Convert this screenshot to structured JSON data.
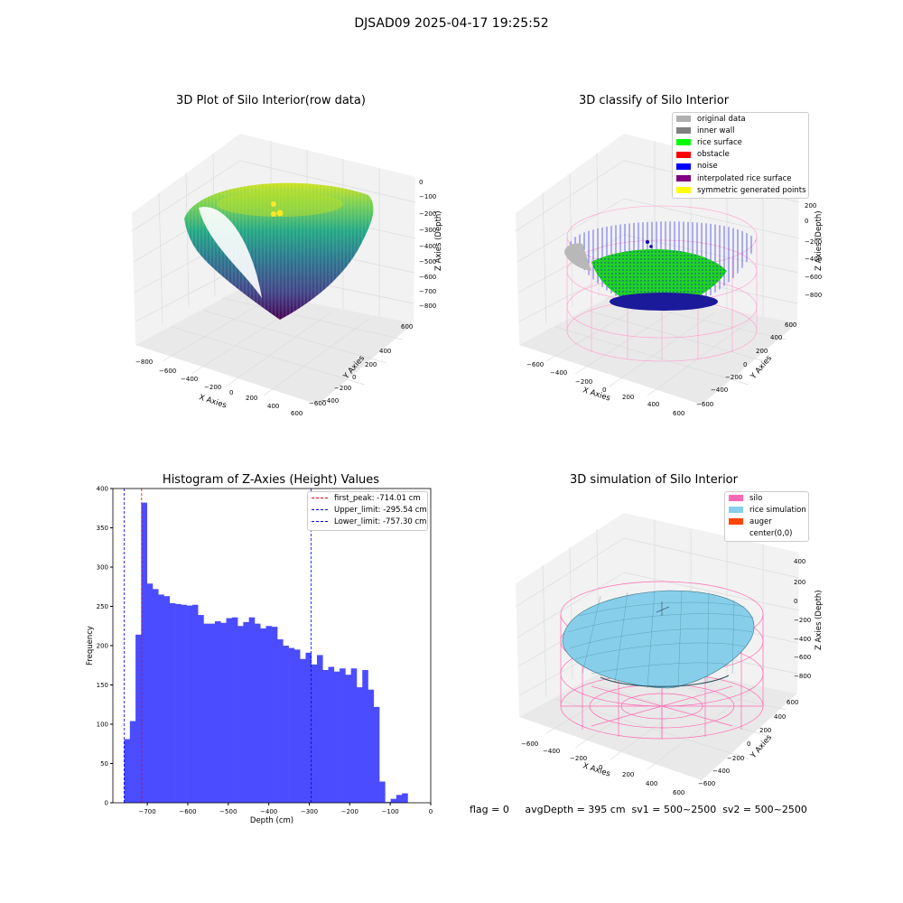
{
  "suptitle": "DJSAD09 2025-04-17 19:25:52",
  "footer": "flag = 0     avgDepth = 395 cm  sv1 = 500~2500  sv2 = 500~2500",
  "chart_data": [
    {
      "type": "scatter",
      "title": "3D Plot of Silo Interior(row data)",
      "xlabel": "X Axies",
      "ylabel": "Y Axies",
      "zlabel": "Z Axies (Depth)",
      "xticks": [
        "−800",
        "−600",
        "−400",
        "−200",
        "0",
        "200",
        "400",
        "600"
      ],
      "yticks": [
        "600",
        "400",
        "200",
        "0",
        "−200",
        "−400",
        "−600"
      ],
      "zticks": [
        "0",
        "−100",
        "−200",
        "−300",
        "−400",
        "−500",
        "−600",
        "−700",
        "−800"
      ],
      "colormap": "viridis",
      "grid": true
    },
    {
      "type": "scatter",
      "title": "3D classify of Silo Interior",
      "xlabel": "X Axies",
      "ylabel": "Y Axies",
      "zlabel": "Z Axies (Depth)",
      "xticks": [
        "−600",
        "−400",
        "−200",
        "0",
        "200",
        "400",
        "600"
      ],
      "yticks": [
        "600",
        "400",
        "200",
        "0",
        "−200",
        "−400",
        "−600"
      ],
      "zticks": [
        "200",
        "0",
        "−200",
        "−400",
        "−600",
        "−800"
      ],
      "legend_position": "top-right",
      "legend": [
        {
          "label": "original data",
          "color": "#b0b0b0"
        },
        {
          "label": "inner wall",
          "color": "#808080"
        },
        {
          "label": "rice surface",
          "color": "#00ff00"
        },
        {
          "label": "obstacle",
          "color": "#ff0000"
        },
        {
          "label": "noise",
          "color": "#0000ff"
        },
        {
          "label": "interpolated rice surface",
          "color": "#800080"
        },
        {
          "label": "symmetric generated points",
          "color": "#ffff00"
        }
      ],
      "grid": true
    },
    {
      "type": "bar",
      "title": "Histogram of Z-Axies (Height) Values",
      "xlabel": "Depth (cm)",
      "ylabel": "Frequency",
      "xlim": [
        -785,
        0
      ],
      "ylim": [
        0,
        400
      ],
      "xticks": [
        "−700",
        "−600",
        "−500",
        "−400",
        "−300",
        "−200",
        "−100",
        "0"
      ],
      "xtick_values": [
        -700,
        -600,
        -500,
        -400,
        -300,
        -200,
        -100,
        0
      ],
      "yticks": [
        "0",
        "50",
        "100",
        "150",
        "200",
        "250",
        "300",
        "350",
        "400"
      ],
      "ytick_values": [
        0,
        50,
        100,
        150,
        200,
        250,
        300,
        350,
        400
      ],
      "bin_width": 14,
      "bin_start": -771,
      "values": [
        0,
        81,
        104,
        214,
        382,
        279,
        272,
        265,
        263,
        254,
        253,
        252,
        251,
        252,
        239,
        228,
        228,
        231,
        229,
        235,
        236,
        225,
        230,
        236,
        228,
        222,
        225,
        224,
        208,
        200,
        197,
        195,
        183,
        191,
        176,
        188,
        169,
        173,
        167,
        171,
        163,
        171,
        147,
        169,
        144,
        122,
        27,
        1,
        5,
        10,
        12
      ],
      "bar_color": "#4b4bff",
      "vlines": [
        {
          "label": "first_peak: -714.01 cm",
          "x": -714.01,
          "color": "#ff0000"
        },
        {
          "label": "Upper_limit: -295.54 cm",
          "x": -295.54,
          "color": "#0000ff"
        },
        {
          "label": "Lower_limit: -757.30 cm",
          "x": -757.3,
          "color": "#0000ff"
        }
      ],
      "legend_position": "top-right"
    },
    {
      "type": "scatter",
      "title": "3D simulation of Silo Interior",
      "xlabel": "X Axies",
      "ylabel": "Y Axies",
      "zlabel": "Z Axies (Depth)",
      "xticks": [
        "−600",
        "−400",
        "−200",
        "0",
        "200",
        "400",
        "600"
      ],
      "yticks": [
        "600",
        "400",
        "200",
        "0",
        "−200",
        "−400",
        "−600"
      ],
      "zticks": [
        "400",
        "200",
        "0",
        "−200",
        "−400",
        "−600",
        "−800"
      ],
      "legend_position": "top-right",
      "legend": [
        {
          "label": "silo",
          "color": "#ff69b4"
        },
        {
          "label": "rice simulation",
          "color": "#87ceeb"
        },
        {
          "label": "auger",
          "color": "#ff4500"
        },
        {
          "label": "center(0,0)",
          "color": "#ffffff"
        }
      ],
      "grid": true
    }
  ]
}
